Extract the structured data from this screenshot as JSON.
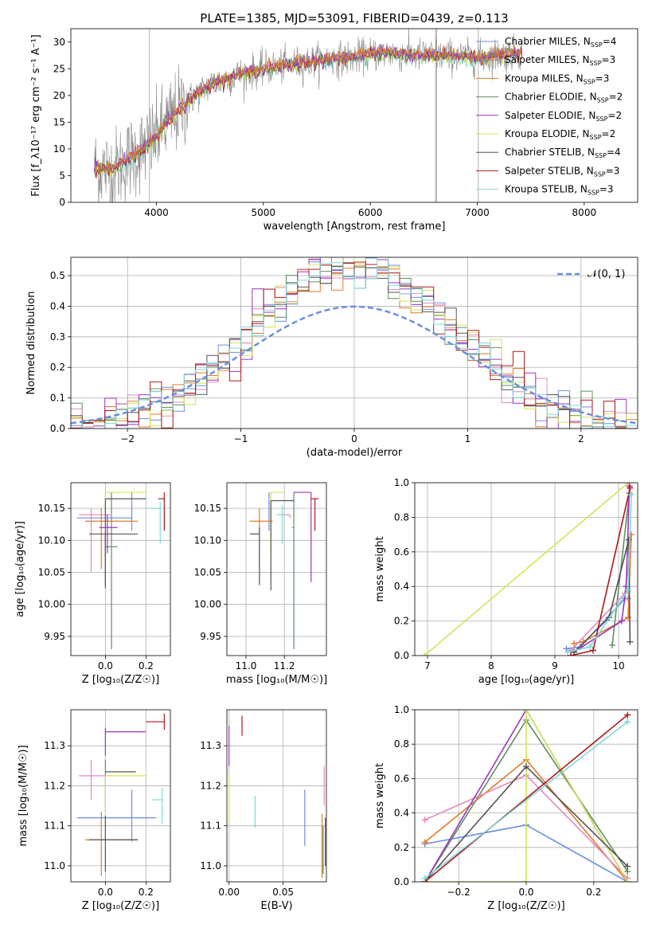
{
  "colors": {
    "blue": "#6a8fdf",
    "orange": "#e07b2a",
    "green": "#5f8f5f",
    "pink": "#e389c0",
    "purple": "#9d34c4",
    "yellow": "#d4e457",
    "darkgray": "#555555",
    "red": "#b01818",
    "cyan": "#7fd8d8",
    "gray": "#888888"
  },
  "chart_data": [
    {
      "id": "spectrum",
      "type": "line",
      "title": "PLATE=1385, MJD=53091, FIBERID=0439, z=0.113",
      "xlabel": "wavelength [Angstrom, rest frame]",
      "ylabel": "Flux [f_λ10⁻¹⁷ erg cm⁻² s⁻¹ A⁻¹]",
      "xlim": [
        3200,
        8500
      ],
      "ylim": [
        0,
        32.5
      ],
      "xticks": [
        4000,
        5000,
        6000,
        7000,
        8000
      ],
      "yticks": [
        0,
        5,
        10,
        15,
        20,
        25,
        30
      ],
      "grid": false,
      "legend": "upper right",
      "legend_entries": [
        {
          "label": "Chabrier MILES, N_SSP=4",
          "color": "blue"
        },
        {
          "label": "Salpeter MILES, N_SSP=3",
          "color": "gray"
        },
        {
          "label": "Kroupa MILES, N_SSP=3",
          "color": "orange"
        },
        {
          "label": "Chabrier ELODIE, N_SSP=2",
          "color": "green"
        },
        {
          "label": "Salpeter ELODIE, N_SSP=2",
          "color": "purple"
        },
        {
          "label": "Kroupa ELODIE, N_SSP=2",
          "color": "yellow"
        },
        {
          "label": "Chabrier STELIB, N_SSP=4",
          "color": "darkgray"
        },
        {
          "label": "Salpeter STELIB, N_SSP=3",
          "color": "red"
        },
        {
          "label": "Kroupa STELIB, N_SSP=3",
          "color": "cyan"
        }
      ],
      "continuum": {
        "x": [
          3420,
          3600,
          3800,
          3950,
          4100,
          4300,
          4500,
          4800,
          5000,
          5200,
          5500,
          5800,
          6100,
          6400,
          6700,
          7000,
          7200,
          7400
        ],
        "y": [
          6.5,
          6.0,
          9.0,
          11.0,
          15.0,
          19.0,
          22.0,
          24.0,
          25.0,
          25.5,
          26.5,
          27.0,
          28.0,
          27.5,
          27.5,
          27.0,
          27.5,
          28.0
        ]
      },
      "data_range": [
        3420,
        7420
      ],
      "vertical_lines": [
        3935,
        6610,
        6620,
        7010
      ]
    },
    {
      "id": "residuals",
      "type": "histogram",
      "xlabel": "(data-model)/error",
      "ylabel": "Normed distribution",
      "xlim": [
        -2.5,
        2.5
      ],
      "ylim": [
        0,
        0.56
      ],
      "xticks": [
        -2,
        -1,
        0,
        1,
        2
      ],
      "yticks": [
        0.0,
        0.1,
        0.2,
        0.3,
        0.4,
        0.5
      ],
      "grid": true,
      "legend": "upper right",
      "legend_label": "𝒩(0, 1)",
      "bin_width": 0.1,
      "reference_curve": "normal(0,1)"
    },
    {
      "id": "age_vs_Z",
      "type": "errorbar",
      "xlabel": "Z [log₁₀(Z/Z☉)]",
      "ylabel": "age  [log₁₀(age/yr)]",
      "xlim": [
        -0.17,
        0.32
      ],
      "ylim": [
        9.92,
        10.19
      ],
      "xticks": [
        0.0,
        0.2
      ],
      "xticklabels": [
        "0.0",
        "0.2"
      ],
      "yticks": [
        9.95,
        10.0,
        10.05,
        10.1,
        10.15
      ],
      "grid": true,
      "points": [
        {
          "color": "blue",
          "x": 0.13,
          "xerr": [
            0.27,
            0.0
          ],
          "y": 10.135,
          "yerr": [
            0.02,
            0.04
          ]
        },
        {
          "color": "orange",
          "x": -0.02,
          "xerr": [
            0.08,
            0.18
          ],
          "y": 10.13,
          "yerr": [
            0.075,
            0.02
          ]
        },
        {
          "color": "green",
          "x": 0.03,
          "xerr": [
            0.03,
            0.03
          ],
          "y": 10.09,
          "yerr": [
            0.16,
            0.085
          ]
        },
        {
          "color": "pink",
          "x": -0.07,
          "xerr": [
            0.06,
            0.1
          ],
          "y": 10.14,
          "yerr": [
            0.09,
            0.01
          ]
        },
        {
          "color": "purple",
          "x": 0.01,
          "xerr": [
            0.04,
            0.05
          ],
          "y": 10.12,
          "yerr": [
            0.04,
            0.02
          ]
        },
        {
          "color": "yellow",
          "x": 0.0,
          "xerr": [
            0.0,
            0.2
          ],
          "y": 10.175,
          "yerr": [
            0.1,
            0.0
          ]
        },
        {
          "color": "darkgray",
          "x": 0.0,
          "xerr": [
            0.0,
            0.2
          ],
          "y": 10.165,
          "yerr": [
            0.14,
            0.0
          ]
        },
        {
          "color": "darkgray",
          "x": 0.0,
          "xerr": [
            0.08,
            0.16
          ],
          "y": 10.11,
          "yerr": [
            0.08,
            0.0
          ]
        },
        {
          "color": "red",
          "x": 0.29,
          "xerr": [
            0.03,
            0.0
          ],
          "y": 10.165,
          "yerr": [
            0.05,
            0.01
          ]
        },
        {
          "color": "cyan",
          "x": 0.27,
          "xerr": [
            0.05,
            0.0
          ],
          "y": 10.15,
          "yerr": [
            0.055,
            0.01
          ]
        }
      ]
    },
    {
      "id": "age_vs_mass",
      "type": "errorbar",
      "xlabel": "mass [log₁₀(M/M☉)]",
      "xlim": [
        10.9,
        11.42
      ],
      "ylim": [
        9.92,
        10.19
      ],
      "xticks": [
        11.0,
        11.2
      ],
      "xticklabels": [
        "11.0",
        "11.2"
      ],
      "yticks": [
        9.95,
        10.0,
        10.05,
        10.1,
        10.15
      ],
      "grid": true,
      "points": [
        {
          "color": "blue",
          "x": 11.12,
          "xerr": [
            0.0,
            0.0
          ],
          "y": 10.135,
          "yerr": [
            0.02,
            0.04
          ]
        },
        {
          "color": "orange",
          "x": 11.07,
          "xerr": [
            0.05,
            0.07
          ],
          "y": 10.13,
          "yerr": [
            0.075,
            0.02
          ]
        },
        {
          "color": "green",
          "x": 11.25,
          "xerr": [
            0.01,
            0.0
          ],
          "y": 10.12,
          "yerr": [
            0.19,
            0.055
          ]
        },
        {
          "color": "pink",
          "x": 11.23,
          "xerr": [
            0.05,
            0.0
          ],
          "y": 10.14,
          "yerr": [
            0.005,
            0.0
          ]
        },
        {
          "color": "purple",
          "x": 11.34,
          "xerr": [
            0.09,
            0.0
          ],
          "y": 10.175,
          "yerr": [
            0.14,
            0.0
          ]
        },
        {
          "color": "yellow",
          "x": 11.13,
          "xerr": [
            0.0,
            0.07
          ],
          "y": 10.175,
          "yerr": [
            0.1,
            0.0
          ]
        },
        {
          "color": "darkgray",
          "x": 11.13,
          "xerr": [
            0.0,
            0.12
          ],
          "y": 10.162,
          "yerr": [
            0.14,
            0.0
          ]
        },
        {
          "color": "darkgray",
          "x": 11.07,
          "xerr": [
            0.05,
            0.0
          ],
          "y": 10.11,
          "yerr": [
            0.08,
            0.01
          ]
        },
        {
          "color": "red",
          "x": 11.36,
          "xerr": [
            0.02,
            0.02
          ],
          "y": 10.165,
          "yerr": [
            0.05,
            0.0
          ]
        },
        {
          "color": "cyan",
          "x": 11.19,
          "xerr": [
            0.03,
            0.0
          ],
          "y": 10.14,
          "yerr": [
            0.045,
            0.015
          ]
        }
      ]
    },
    {
      "id": "weight_vs_age",
      "type": "line",
      "xlabel": "age  [log₁₀(age/yr)]",
      "ylabel": "mass weight",
      "xlim": [
        6.8,
        10.3
      ],
      "ylim": [
        0,
        1.0
      ],
      "xticks": [
        7,
        8,
        9,
        10
      ],
      "yticks": [
        0.0,
        0.2,
        0.4,
        0.6,
        0.8,
        1.0
      ],
      "grid": true,
      "series": [
        {
          "color": "yellow",
          "x": [
            6.95,
            10.15
          ],
          "y": [
            0.0,
            1.0
          ]
        },
        {
          "color": "blue",
          "x": [
            9.18,
            9.4,
            10.1,
            10.15
          ],
          "y": [
            0.04,
            0.05,
            0.33,
            0.33
          ]
        },
        {
          "color": "orange",
          "x": [
            9.3,
            9.45,
            10.15,
            10.2
          ],
          "y": [
            0.07,
            0.08,
            0.22,
            0.7
          ]
        },
        {
          "color": "green",
          "x": [
            9.9,
            10.17
          ],
          "y": [
            0.06,
            0.94
          ]
        },
        {
          "color": "pink",
          "x": [
            9.25,
            10.1,
            10.18
          ],
          "y": [
            0.03,
            0.36,
            0.6
          ]
        },
        {
          "color": "purple",
          "x": [
            9.3,
            10.05,
            10.12,
            10.17
          ],
          "y": [
            0.02,
            0.2,
            0.4,
            0.98
          ]
        },
        {
          "color": "darkgray",
          "x": [
            9.3,
            9.85,
            10.16,
            10.18
          ],
          "y": [
            0.02,
            0.22,
            0.67,
            0.08
          ]
        },
        {
          "color": "red",
          "x": [
            9.25,
            9.6,
            10.18
          ],
          "y": [
            0.0,
            0.03,
            0.97
          ]
        },
        {
          "color": "cyan",
          "x": [
            9.2,
            9.55,
            10.15,
            10.2
          ],
          "y": [
            0.02,
            0.05,
            0.38,
            0.93
          ]
        }
      ]
    },
    {
      "id": "mass_vs_Z",
      "type": "errorbar",
      "xlabel": "Z [log₁₀(Z/Z☉)]",
      "ylabel": "mass [log₁₀(M/M☉)]",
      "xlim": [
        -0.17,
        0.32
      ],
      "ylim": [
        10.96,
        11.39
      ],
      "xticks": [
        0.0,
        0.2
      ],
      "xticklabels": [
        "0.0",
        "0.2"
      ],
      "yticks": [
        11.0,
        11.1,
        11.2,
        11.3
      ],
      "grid": true,
      "points": [
        {
          "color": "blue",
          "x": 0.13,
          "xerr": [
            0.27,
            0.12
          ],
          "y": 11.12,
          "yerr": [
            0.06,
            0.07
          ]
        },
        {
          "color": "orange",
          "x": -0.02,
          "xerr": [
            0.08,
            0.18
          ],
          "y": 11.065,
          "yerr": [
            0.09,
            0.07
          ]
        },
        {
          "color": "green",
          "x": 0.0,
          "xerr": [
            0.0,
            0.0
          ],
          "y": 11.235,
          "yerr": [
            0.1,
            0.03
          ]
        },
        {
          "color": "pink",
          "x": -0.07,
          "xerr": [
            0.06,
            0.1
          ],
          "y": 11.225,
          "yerr": [
            0.06,
            0.04
          ]
        },
        {
          "color": "purple",
          "x": 0.0,
          "xerr": [
            0.0,
            0.2
          ],
          "y": 11.335,
          "yerr": [
            0.06,
            0.01
          ]
        },
        {
          "color": "yellow",
          "x": 0.0,
          "xerr": [
            0.0,
            0.2
          ],
          "y": 11.225,
          "yerr": [
            0.12,
            0.0
          ]
        },
        {
          "color": "darkgray",
          "x": 0.0,
          "xerr": [
            0.0,
            0.15
          ],
          "y": 11.235,
          "yerr": [
            0.0,
            0.0
          ]
        },
        {
          "color": "darkgray",
          "x": 0.0,
          "xerr": [
            0.08,
            0.16
          ],
          "y": 11.065,
          "yerr": [
            0.08,
            0.06
          ]
        },
        {
          "color": "red",
          "x": 0.29,
          "xerr": [
            0.09,
            0.0
          ],
          "y": 11.36,
          "yerr": [
            0.02,
            0.02
          ]
        },
        {
          "color": "cyan",
          "x": 0.28,
          "xerr": [
            0.05,
            0.0
          ],
          "y": 11.165,
          "yerr": [
            0.06,
            0.03
          ]
        }
      ]
    },
    {
      "id": "mass_vs_ebv",
      "type": "errorbar",
      "xlabel": "E(B-V)",
      "xlim": [
        -0.002,
        0.09
      ],
      "ylim": [
        10.96,
        11.39
      ],
      "xticks": [
        0.0,
        0.05
      ],
      "xticklabels": [
        "0.00",
        "0.05"
      ],
      "yticks": [
        11.0,
        11.1,
        11.2,
        11.3
      ],
      "grid": true,
      "points": [
        {
          "color": "blue",
          "x": 0.07,
          "y": 11.12,
          "yerr": [
            0.07,
            0.07
          ]
        },
        {
          "color": "orange",
          "x": 0.086,
          "y": 11.05,
          "yerr": [
            0.08,
            0.08
          ]
        },
        {
          "color": "green",
          "x": 0.087,
          "y": 11.04,
          "yerr": [
            0.06,
            0.06
          ]
        },
        {
          "color": "pink",
          "x": 0.088,
          "y": 11.2,
          "yerr": [
            0.05,
            0.05
          ]
        },
        {
          "color": "purple",
          "x": 0.0,
          "y": 11.3,
          "yerr": [
            0.05,
            0.05
          ]
        },
        {
          "color": "yellow",
          "x": 0.0,
          "y": 11.17,
          "yerr": [
            0.06,
            0.06
          ]
        },
        {
          "color": "darkgray",
          "x": 0.089,
          "y": 11.06,
          "yerr": [
            0.06,
            0.06
          ]
        },
        {
          "color": "red",
          "x": 0.012,
          "y": 11.35,
          "yerr": [
            0.025,
            0.025
          ]
        },
        {
          "color": "cyan",
          "x": 0.024,
          "y": 11.135,
          "yerr": [
            0.04,
            0.04
          ]
        }
      ]
    },
    {
      "id": "weight_vs_Z",
      "type": "line",
      "xlabel": "Z [log₁₀(Z/Z☉)]",
      "ylabel": "mass weight",
      "xlim": [
        -0.33,
        0.33
      ],
      "ylim": [
        0,
        1.0
      ],
      "xticks": [
        -0.2,
        0.0,
        0.2
      ],
      "xticklabels": [
        "−0.2",
        "0.0",
        "0.2"
      ],
      "yticks": [
        0.0,
        0.2,
        0.4,
        0.6,
        0.8,
        1.0
      ],
      "grid": true,
      "series": [
        {
          "color": "blue",
          "x": [
            -0.3,
            0.0,
            0.3
          ],
          "y": [
            0.22,
            0.33,
            0.0
          ]
        },
        {
          "color": "orange",
          "x": [
            -0.3,
            0.0,
            0.3
          ],
          "y": [
            0.23,
            0.71,
            0.0
          ]
        },
        {
          "color": "green",
          "x": [
            -0.3,
            0.0,
            0.3
          ],
          "y": [
            0.0,
            0.94,
            0.06
          ]
        },
        {
          "color": "pink",
          "x": [
            -0.3,
            0.0,
            0.3
          ],
          "y": [
            0.36,
            0.62,
            0.02
          ]
        },
        {
          "color": "purple",
          "x": [
            -0.3,
            0.0,
            0.3
          ],
          "y": [
            0.0,
            1.0,
            0.0
          ]
        },
        {
          "color": "yellow",
          "x": [
            -0.3,
            0.0,
            0.0,
            0.3
          ],
          "y": [
            0.0,
            0.0,
            1.0,
            0.0
          ]
        },
        {
          "color": "darkgray",
          "x": [
            -0.3,
            0.0,
            0.3
          ],
          "y": [
            0.0,
            0.67,
            0.09
          ]
        },
        {
          "color": "red",
          "x": [
            -0.3,
            0.3
          ],
          "y": [
            0.0,
            0.97
          ]
        },
        {
          "color": "cyan",
          "x": [
            -0.3,
            0.3
          ],
          "y": [
            0.02,
            0.93
          ]
        }
      ]
    }
  ]
}
